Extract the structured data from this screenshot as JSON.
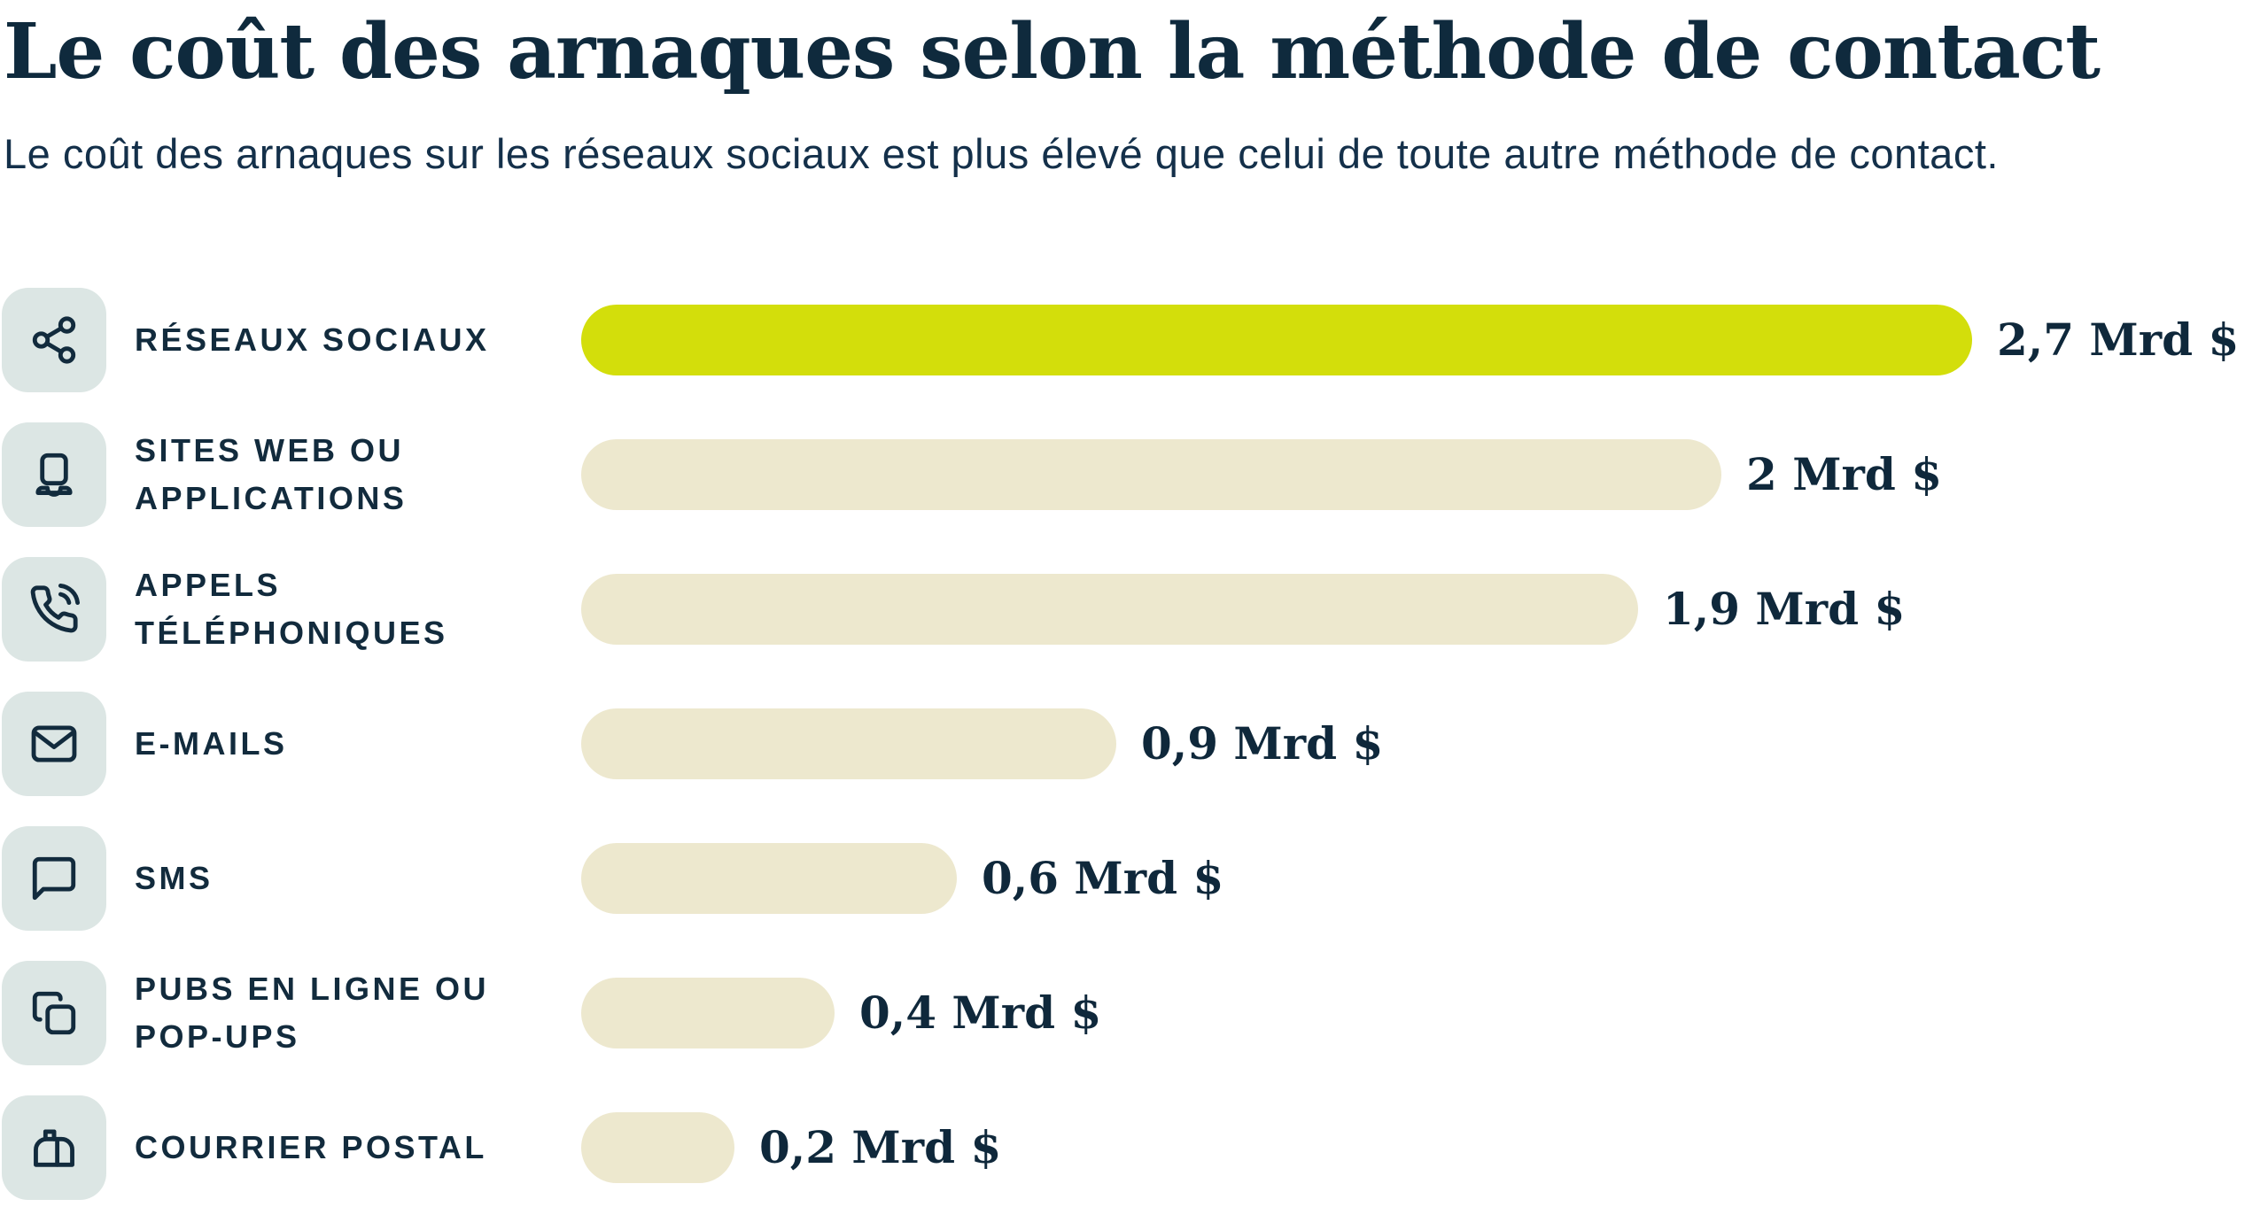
{
  "header": {
    "title": "Le coût des arnaques selon la méthode de contact",
    "subtitle": "Le coût des arnaques sur les réseaux sociaux est plus élevé que celui de toute autre méthode de contact."
  },
  "chart_data": {
    "type": "bar",
    "orientation": "horizontal",
    "title": "Le coût des arnaques selon la méthode de contact",
    "subtitle": "Le coût des arnaques sur les réseaux sociaux est plus élevé que celui de toute autre méthode de contact.",
    "unit": "Mrd $",
    "xlim": [
      0,
      2.7
    ],
    "grid": false,
    "legend": "none",
    "categories": [
      "RÉSEAUX SOCIAUX",
      "SITES WEB OU APPLICATIONS",
      "APPELS TÉLÉPHONIQUES",
      "E-MAILS",
      "SMS",
      "PUBS EN LIGNE OU POP-UPS",
      "COURRIER POSTAL"
    ],
    "values": [
      2.7,
      2.0,
      1.9,
      0.9,
      0.6,
      0.4,
      0.2
    ],
    "rows": [
      {
        "label": "RÉSEAUX SOCIAUX",
        "icon": "share-icon",
        "value": 2.7,
        "value_label": "2,7 Mrd $",
        "bar_pct": 100,
        "highlight": true
      },
      {
        "label": "SITES WEB OU\nAPPLICATIONS",
        "icon": "laptop-icon",
        "value": 2.0,
        "value_label": "2 Mrd $",
        "bar_pct": 82,
        "highlight": false
      },
      {
        "label": "APPELS\nTÉLÉPHONIQUES",
        "icon": "phone-call-icon",
        "value": 1.9,
        "value_label": "1,9 Mrd $",
        "bar_pct": 76,
        "highlight": false
      },
      {
        "label": "E-MAILS",
        "icon": "envelope-icon",
        "value": 0.9,
        "value_label": "0,9 Mrd $",
        "bar_pct": 38.5,
        "highlight": false
      },
      {
        "label": "SMS",
        "icon": "speech-bubble-icon",
        "value": 0.6,
        "value_label": "0,6 Mrd $",
        "bar_pct": 27,
        "highlight": false
      },
      {
        "label": "PUBS EN LIGNE OU\nPOP-UPS",
        "icon": "copy-icon",
        "value": 0.4,
        "value_label": "0,4 Mrd $",
        "bar_pct": 18.2,
        "highlight": false
      },
      {
        "label": "COURRIER POSTAL",
        "icon": "mailbox-icon",
        "value": 0.2,
        "value_label": "0,2 Mrd $",
        "bar_pct": 11,
        "highlight": false
      }
    ],
    "colors": {
      "highlight_bar": "#d3de0b",
      "default_bar": "#ede8ce",
      "icon_chip_bg": "#dce6e4",
      "text": "#122b3d"
    }
  }
}
